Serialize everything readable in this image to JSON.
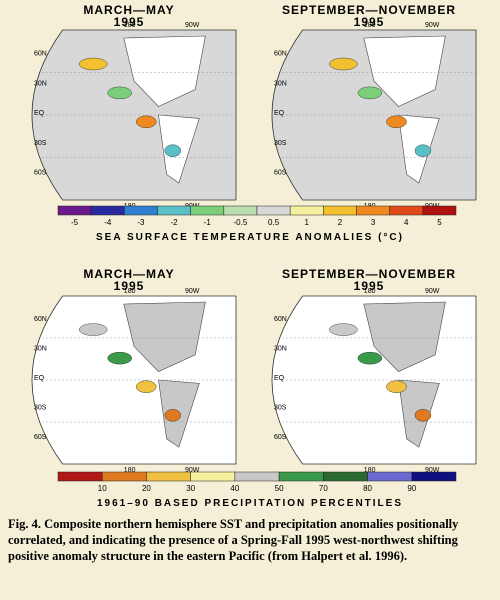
{
  "sst": {
    "panels": [
      {
        "title": "MARCH—MAY",
        "year": "1995",
        "top_labels": [
          "180",
          "90W"
        ],
        "side_labels": [
          "60N",
          "30N",
          "EQ",
          "30S",
          "60S"
        ],
        "bottom_labels": [
          "180",
          "90W"
        ]
      },
      {
        "title": "SEPTEMBER—NOVEMBER",
        "year": "1995",
        "top_labels": [
          "180",
          "90W"
        ],
        "side_labels": [
          "60N",
          "30N",
          "EQ",
          "30S",
          "60S"
        ],
        "bottom_labels": [
          "180",
          "90W"
        ]
      }
    ],
    "scale_labels": [
      "-5",
      "-4",
      "-3",
      "-2",
      "-1",
      "-0.5",
      "0.5",
      "1",
      "2",
      "3",
      "4",
      "5"
    ],
    "scale_title": "SEA SURFACE TEMPERATURE ANOMALIES (°C)"
  },
  "precip": {
    "panels": [
      {
        "title": "MARCH—MAY",
        "year": "1995",
        "top_labels": [
          "180",
          "90W"
        ],
        "side_labels": [
          "60N",
          "30N",
          "EQ",
          "30S",
          "60S"
        ],
        "bottom_labels": [
          "180",
          "90W"
        ]
      },
      {
        "title": "SEPTEMBER—NOVEMBER",
        "year": "1995",
        "top_labels": [
          "180",
          "90W"
        ],
        "side_labels": [
          "60N",
          "30N",
          "EQ",
          "30S",
          "60S"
        ],
        "bottom_labels": [
          "180",
          "90W"
        ]
      }
    ],
    "scale_labels": [
      "10",
      "20",
      "30",
      "40",
      "50",
      "70",
      "80",
      "90"
    ],
    "scale_title": "1961–90 BASED PRECIPITATION PERCENTILES"
  },
  "caption": "Fig. 4.  Composite northern hemisphere SST and precipitation anomalies positionally correlated, and indicating the presence of a Spring-Fall 1995 west-northwest shifting positive anomaly structure in the eastern Pacific (from Halpert et al. 1996)."
}
